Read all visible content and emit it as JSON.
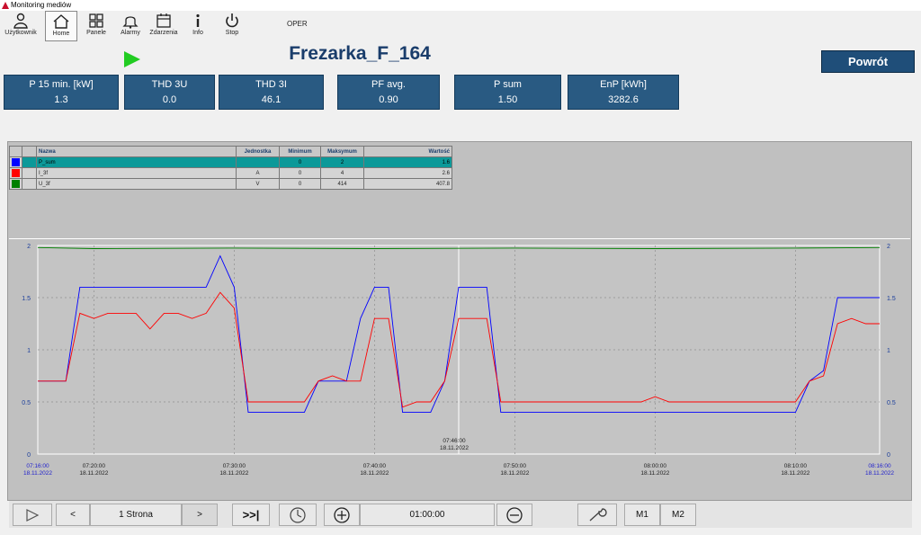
{
  "window": {
    "title": "Monitoring mediów"
  },
  "toolbar": {
    "items": [
      {
        "label": "Użytkownik",
        "icon": "user-icon"
      },
      {
        "label": "Home",
        "icon": "home-icon"
      },
      {
        "label": "Panele",
        "icon": "panels-icon"
      },
      {
        "label": "Alarmy",
        "icon": "bell-icon"
      },
      {
        "label": "Zdarzenia",
        "icon": "calendar-icon"
      },
      {
        "label": "Info",
        "icon": "info-icon"
      },
      {
        "label": "Stop",
        "icon": "power-icon"
      }
    ],
    "mode": "OPER"
  },
  "header": {
    "title": "Frezarka_F_164",
    "back_label": "Powrót",
    "status_color": "#22cc22"
  },
  "kpis": [
    {
      "label": "P 15 min. [kW]",
      "value": "1.3"
    },
    {
      "label": "THD 3U",
      "value": "0.0"
    },
    {
      "label": "THD 3I",
      "value": "46.1"
    },
    {
      "label": "PF avg.",
      "value": "0.90"
    },
    {
      "label": "P sum",
      "value": "1.50"
    },
    {
      "label": "EnP [kWh]",
      "value": "3282.6"
    }
  ],
  "legend": {
    "headers": [
      "Nazwa",
      "Jednostka",
      "Minimum",
      "Maksymum",
      "Wartość"
    ],
    "rows": [
      {
        "color": "#0000ff",
        "name": "P_sum",
        "unit": "",
        "min": "0",
        "max": "2",
        "value": "1.6"
      },
      {
        "color": "#ff0000",
        "name": "I_3f",
        "unit": "A",
        "min": "0",
        "max": "4",
        "value": "2.6"
      },
      {
        "color": "#008000",
        "name": "U_3f",
        "unit": "V",
        "min": "0",
        "max": "414",
        "value": "407.8"
      }
    ]
  },
  "chart_data": {
    "type": "line",
    "x_start": "07:16:00",
    "x_end": "08:16:00",
    "y_ticks": [
      "0",
      "0.5",
      "1",
      "1.5",
      "2"
    ],
    "ylim": [
      0,
      2
    ],
    "x_labels": [
      {
        "time": "07:16:00",
        "date": "18.11.2022"
      },
      {
        "time": "07:20:00",
        "date": "18.11.2022"
      },
      {
        "time": "07:30:00",
        "date": "18.11.2022"
      },
      {
        "time": "07:40:00",
        "date": "18.11.2022"
      },
      {
        "time": "07:50:00",
        "date": "18.11.2022"
      },
      {
        "time": "08:00:00",
        "date": "18.11.2022"
      },
      {
        "time": "08:10:00",
        "date": "18.11.2022"
      },
      {
        "time": "08:16:00",
        "date": "18.11.2022"
      }
    ],
    "cursor": {
      "time": "07:46:00",
      "date": "18.11.2022"
    },
    "series": [
      {
        "name": "P_sum",
        "color": "#0000ff",
        "points": [
          [
            "07:16:00",
            0.7
          ],
          [
            "07:18:00",
            0.7
          ],
          [
            "07:19:00",
            1.6
          ],
          [
            "07:28:00",
            1.6
          ],
          [
            "07:29:00",
            1.9
          ],
          [
            "07:30:00",
            1.6
          ],
          [
            "07:31:00",
            0.4
          ],
          [
            "07:35:00",
            0.4
          ],
          [
            "07:36:00",
            0.7
          ],
          [
            "07:38:00",
            0.7
          ],
          [
            "07:39:00",
            1.3
          ],
          [
            "07:40:00",
            1.6
          ],
          [
            "07:41:00",
            1.6
          ],
          [
            "07:42:00",
            0.4
          ],
          [
            "07:44:00",
            0.4
          ],
          [
            "07:45:00",
            0.7
          ],
          [
            "07:46:00",
            1.6
          ],
          [
            "07:48:00",
            1.6
          ],
          [
            "07:49:00",
            0.4
          ],
          [
            "08:10:00",
            0.4
          ],
          [
            "08:11:00",
            0.7
          ],
          [
            "08:12:00",
            0.8
          ],
          [
            "08:13:00",
            1.5
          ],
          [
            "08:16:00",
            1.5
          ]
        ]
      },
      {
        "name": "I_3f",
        "color": "#ff0000",
        "points": [
          [
            "07:16:00",
            0.7
          ],
          [
            "07:18:00",
            0.7
          ],
          [
            "07:19:00",
            1.35
          ],
          [
            "07:20:00",
            1.3
          ],
          [
            "07:21:00",
            1.35
          ],
          [
            "07:23:00",
            1.35
          ],
          [
            "07:24:00",
            1.2
          ],
          [
            "07:25:00",
            1.35
          ],
          [
            "07:26:00",
            1.35
          ],
          [
            "07:27:00",
            1.3
          ],
          [
            "07:28:00",
            1.35
          ],
          [
            "07:29:00",
            1.55
          ],
          [
            "07:30:00",
            1.4
          ],
          [
            "07:31:00",
            0.5
          ],
          [
            "07:35:00",
            0.5
          ],
          [
            "07:36:00",
            0.7
          ],
          [
            "07:37:00",
            0.75
          ],
          [
            "07:38:00",
            0.7
          ],
          [
            "07:39:00",
            0.7
          ],
          [
            "07:40:00",
            1.3
          ],
          [
            "07:41:00",
            1.3
          ],
          [
            "07:42:00",
            0.45
          ],
          [
            "07:43:00",
            0.5
          ],
          [
            "07:44:00",
            0.5
          ],
          [
            "07:45:00",
            0.7
          ],
          [
            "07:46:00",
            1.3
          ],
          [
            "07:48:00",
            1.3
          ],
          [
            "07:49:00",
            0.5
          ],
          [
            "07:59:00",
            0.5
          ],
          [
            "08:00:00",
            0.55
          ],
          [
            "08:01:00",
            0.5
          ],
          [
            "08:10:00",
            0.5
          ],
          [
            "08:11:00",
            0.7
          ],
          [
            "08:12:00",
            0.75
          ],
          [
            "08:13:00",
            1.25
          ],
          [
            "08:14:00",
            1.3
          ],
          [
            "08:15:00",
            1.25
          ],
          [
            "08:16:00",
            1.25
          ]
        ]
      },
      {
        "name": "U_3f",
        "color": "#008000",
        "points": [
          [
            "07:16:00",
            1.98
          ],
          [
            "07:20:00",
            1.97
          ],
          [
            "07:30:00",
            1.975
          ],
          [
            "07:40:00",
            1.97
          ],
          [
            "07:50:00",
            1.975
          ],
          [
            "08:00:00",
            1.97
          ],
          [
            "08:10:00",
            1.975
          ],
          [
            "08:16:00",
            1.98
          ]
        ]
      }
    ]
  },
  "bottom": {
    "page_label": "1 Strona",
    "prev": "<",
    "next": ">",
    "end": ">>|",
    "interval": "01:00:00",
    "m1": "M1",
    "m2": "M2"
  }
}
